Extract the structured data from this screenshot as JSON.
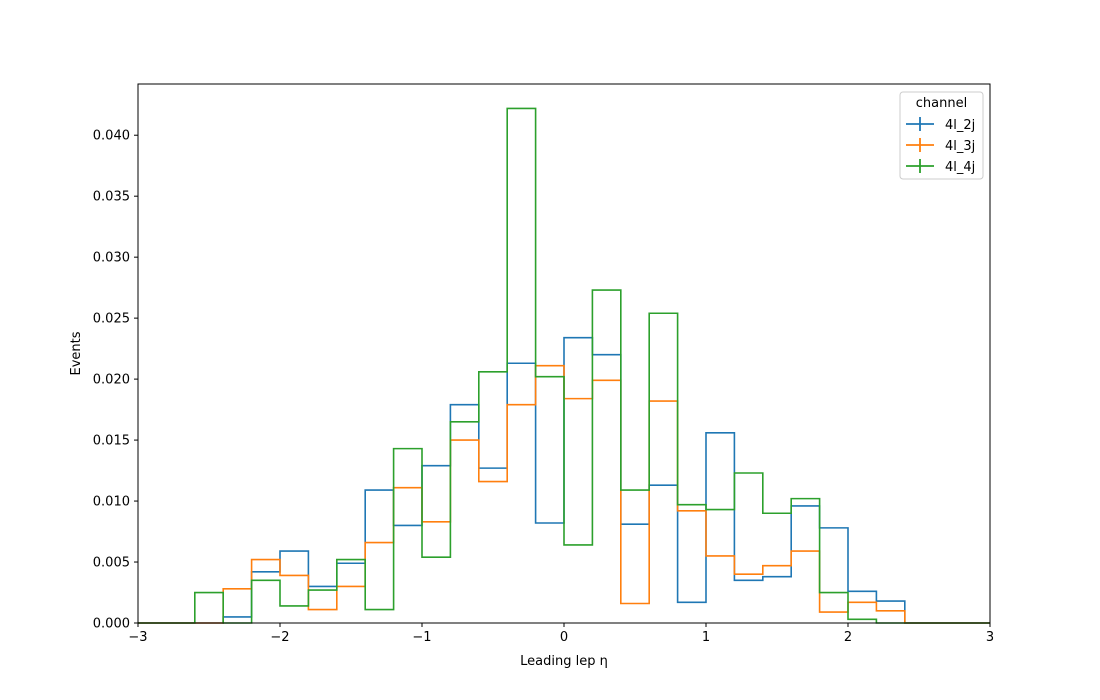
{
  "chart_data": {
    "type": "step-histogram",
    "xlabel": "Leading lep η",
    "ylabel": "Events",
    "xlim": [
      -3,
      3
    ],
    "ylim": [
      0,
      0.0442
    ],
    "xticks": [
      -3,
      -2,
      -1,
      0,
      1,
      2,
      3
    ],
    "xtick_labels": [
      "−3",
      "−2",
      "−1",
      "0",
      "1",
      "2",
      "3"
    ],
    "yticks": [
      0,
      0.005,
      0.01,
      0.015,
      0.02,
      0.025,
      0.03,
      0.035,
      0.04
    ],
    "ytick_labels": [
      "0.000",
      "0.005",
      "0.010",
      "0.015",
      "0.020",
      "0.025",
      "0.030",
      "0.035",
      "0.040"
    ],
    "bin_edges": [
      -3.0,
      -2.8,
      -2.6,
      -2.4,
      -2.2,
      -2.0,
      -1.8,
      -1.6,
      -1.4,
      -1.2,
      -1.0,
      -0.8,
      -0.6,
      -0.4,
      -0.2,
      0.0,
      0.2,
      0.4,
      0.6,
      0.8,
      1.0,
      1.2,
      1.4,
      1.6,
      1.8,
      2.0,
      2.2,
      2.4,
      2.6,
      2.8,
      3.0
    ],
    "legend": {
      "title": "channel",
      "position": "top-right"
    },
    "series": [
      {
        "name": "4l_2j",
        "color": "#1f77b4",
        "values": [
          0,
          0,
          0,
          0.0005,
          0.0042,
          0.0059,
          0.003,
          0.0049,
          0.0109,
          0.008,
          0.0129,
          0.0179,
          0.0127,
          0.0213,
          0.0082,
          0.0234,
          0.022,
          0.0081,
          0.0113,
          0.0017,
          0.0156,
          0.0035,
          0.0038,
          0.0096,
          0.0078,
          0.0026,
          0.0018,
          0,
          0,
          0
        ]
      },
      {
        "name": "4l_3j",
        "color": "#ff7f0e",
        "values": [
          0,
          0,
          0,
          0.0028,
          0.0052,
          0.0039,
          0.0011,
          0.003,
          0.0066,
          0.0111,
          0.0083,
          0.015,
          0.0116,
          0.0179,
          0.0211,
          0.0184,
          0.0199,
          0.0016,
          0.0182,
          0.0092,
          0.0055,
          0.004,
          0.0047,
          0.0059,
          0.0009,
          0.0017,
          0.001,
          0,
          0,
          0
        ]
      },
      {
        "name": "4l_4j",
        "color": "#2ca02c",
        "values": [
          0,
          0,
          0.0025,
          0,
          0.0035,
          0.0014,
          0.0027,
          0.0052,
          0.0011,
          0.0143,
          0.0054,
          0.0165,
          0.0206,
          0.0422,
          0.0202,
          0.0064,
          0.0273,
          0.0109,
          0.0254,
          0.0097,
          0.0093,
          0.0123,
          0.009,
          0.0102,
          0.0025,
          0.0003,
          0,
          0,
          0,
          0
        ]
      }
    ]
  }
}
